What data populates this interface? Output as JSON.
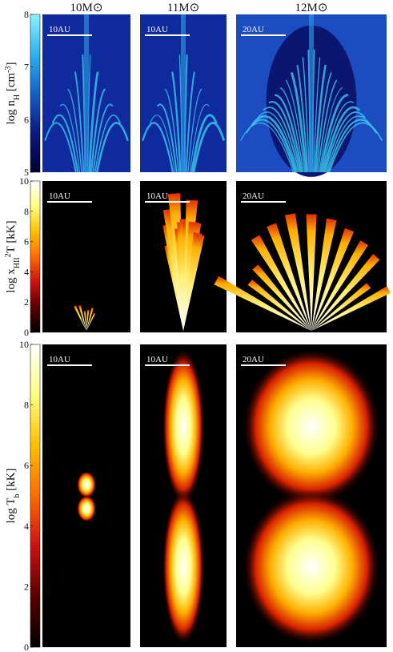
{
  "columns": [
    "10M⊙",
    "11M⊙",
    "12M⊙"
  ],
  "chart_data": [
    {
      "type": "image",
      "ylabel": [
        {
          "text": "log n"
        },
        {
          "text": "H",
          "shift": "sub"
        },
        {
          "text": " [cm"
        },
        {
          "text": "-3",
          "shift": "super"
        },
        {
          "text": "]"
        }
      ],
      "ylim": [
        5,
        8
      ],
      "yticks": [
        5,
        6,
        7,
        8
      ],
      "colormap": [
        "#000030",
        "#0a1a80",
        "#1560c8",
        "#2ab4f0",
        "#8af4ff"
      ],
      "scale_bars": [
        "10AU",
        "10AU",
        "20AU"
      ]
    },
    {
      "type": "image",
      "ylabel": [
        {
          "text": "log x"
        },
        {
          "text": "HII",
          "shift": "sub"
        },
        {
          "text": "2",
          "shift": "super"
        },
        {
          "text": "T [kK]"
        }
      ],
      "ylim": [
        0,
        10
      ],
      "yticks": [
        0,
        2,
        4,
        6,
        8,
        10
      ],
      "colormap": [
        "#000000",
        "#5a0000",
        "#cc1010",
        "#ff6a00",
        "#ffc000",
        "#ffff80",
        "#ffffff"
      ],
      "scale_bars": [
        "10AU",
        "10AU",
        "20AU"
      ]
    },
    {
      "type": "image",
      "ylabel": [
        {
          "text": "log T"
        },
        {
          "text": "b",
          "shift": "sub"
        },
        {
          "text": " [kK]"
        }
      ],
      "ylim": [
        0,
        10
      ],
      "yticks": [
        0,
        2,
        4,
        6,
        8,
        10
      ],
      "colormap": [
        "#000000",
        "#5a0000",
        "#cc1010",
        "#ff6a00",
        "#ffc000",
        "#ffff80",
        "#ffffff"
      ],
      "scale_bars": [
        "10AU",
        "10AU",
        "20AU"
      ]
    }
  ]
}
